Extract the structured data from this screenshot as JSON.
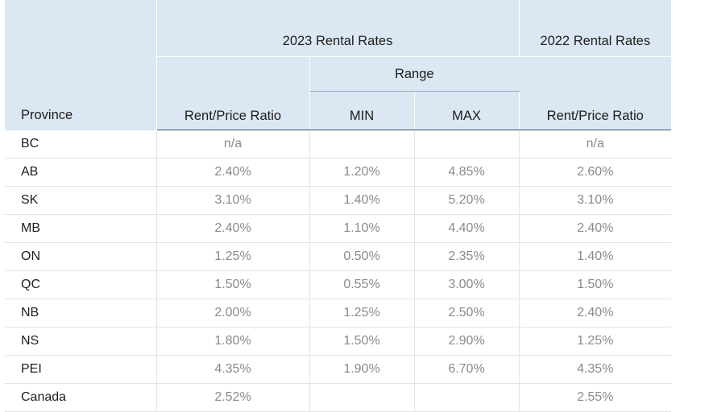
{
  "header": {
    "group_2023": "2023 Rental Rates",
    "group_2022": "2022 Rental Rates",
    "range": "Range",
    "province": "Province",
    "rent_price_2023": "Rent/Price Ratio",
    "min": "MIN",
    "max": "MAX",
    "rent_price_2022": "Rent/Price Ratio"
  },
  "rows": [
    {
      "province": "BC",
      "r2023": "n/a",
      "min": "",
      "max": "",
      "r2022": "n/a"
    },
    {
      "province": "AB",
      "r2023": "2.40%",
      "min": "1.20%",
      "max": "4.85%",
      "r2022": "2.60%"
    },
    {
      "province": "SK",
      "r2023": "3.10%",
      "min": "1.40%",
      "max": "5.20%",
      "r2022": "3.10%"
    },
    {
      "province": "MB",
      "r2023": "2.40%",
      "min": "1.10%",
      "max": "4.40%",
      "r2022": "2.40%"
    },
    {
      "province": "ON",
      "r2023": "1.25%",
      "min": "0.50%",
      "max": "2.35%",
      "r2022": "1.40%"
    },
    {
      "province": "QC",
      "r2023": "1.50%",
      "min": "0.55%",
      "max": "3.00%",
      "r2022": "1.50%"
    },
    {
      "province": "NB",
      "r2023": "2.00%",
      "min": "1.25%",
      "max": "2.50%",
      "r2022": "2.40%"
    },
    {
      "province": "NS",
      "r2023": "1.80%",
      "min": "1.50%",
      "max": "2.90%",
      "r2022": "1.25%"
    },
    {
      "province": "PEI",
      "r2023": "4.35%",
      "min": "1.90%",
      "max": "6.70%",
      "r2022": "4.35%"
    }
  ],
  "total": {
    "province": "Canada",
    "r2023": "2.52%",
    "min": "",
    "max": "",
    "r2022": "2.55%"
  }
}
